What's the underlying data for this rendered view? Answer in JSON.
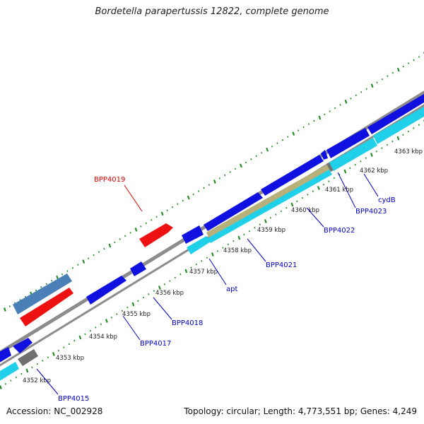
{
  "title": "Bordetella parapertussis 12822, complete genome",
  "footer": {
    "accession": "Accession: NC_002928",
    "topology": "Topology: circular; Length: 4,773,551 bp; Genes: 4,249"
  },
  "colors": {
    "backbone": "#8c8c8c",
    "tick": "#2a8a2a",
    "gene_blue": "#1010e0",
    "gene_cyan": "#20d0e8",
    "gene_red": "#ee1111",
    "gene_steel": "#4a7fb8",
    "gene_gray": "#707070",
    "gene_olive": "#b8b07a",
    "label_blue": "#0000cc",
    "label_red": "#dd0000",
    "kbp_text": "#222222"
  },
  "kbp_labels": [
    "4352 kbp",
    "4353 kbp",
    "4354 kbp",
    "4355 kbp",
    "4356 kbp",
    "4357 kbp",
    "4358 kbp",
    "4359 kbp",
    "4360 kbp",
    "4361 kbp",
    "4362 kbp",
    "4363 kbp"
  ],
  "gene_labels": [
    "BPP4015",
    "BPP4017",
    "BPP4018",
    "BPP4019",
    "apt",
    "BPP4021",
    "BPP4022",
    "BPP4023",
    "cydB"
  ]
}
